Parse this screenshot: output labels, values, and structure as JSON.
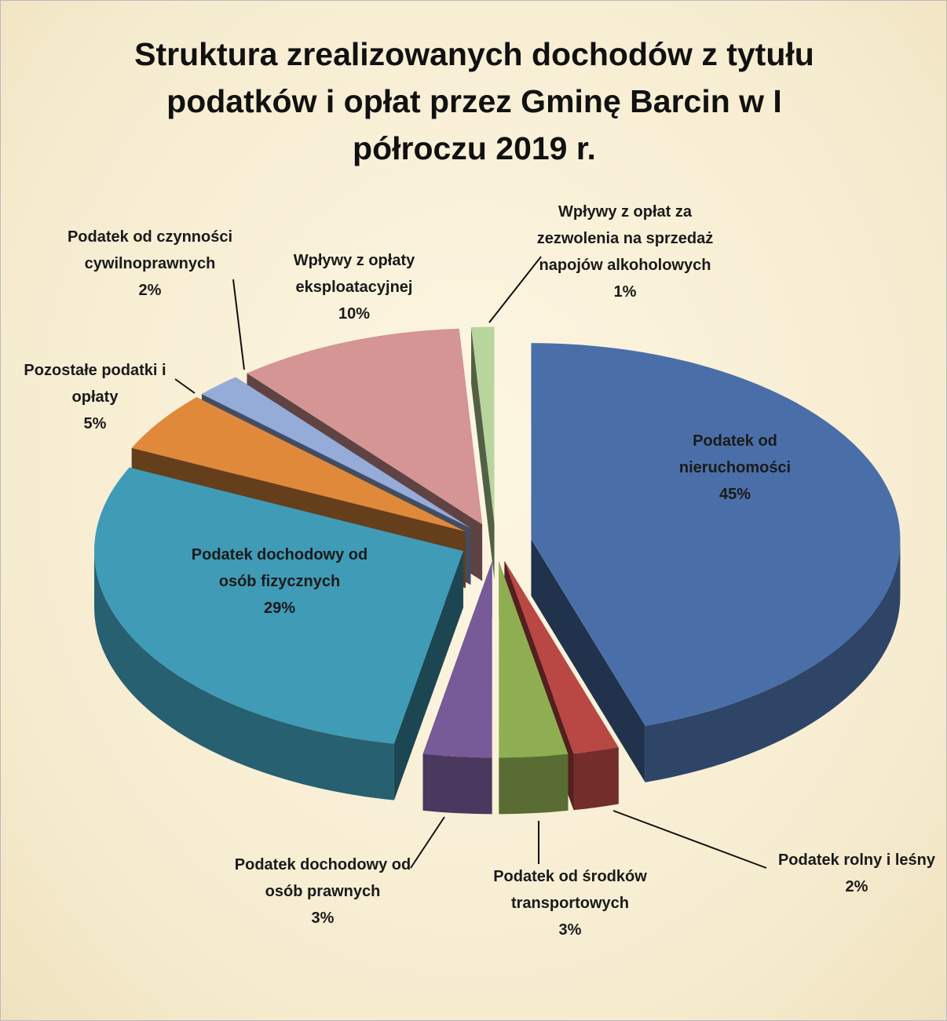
{
  "chart_data": {
    "type": "pie3d",
    "title": "Struktura zrealizowanych dochodów z tytułu podatków i opłat przez Gminę Barcin w I półroczu 2019 r.",
    "categories": [
      "Podatek od nieruchomości",
      "Podatek rolny i leśny",
      "Podatek od środków transportowych",
      "Podatek dochodowy od osób prawnych",
      "Podatek dochodowy od osób fizycznych",
      "Pozostałe podatki i opłaty",
      "Podatek od czynności cywilnoprawnych",
      "Wpływy z opłaty eksploatacyjnej",
      "Wpływy z opłat za zezwolenia na sprzedaż napojów alkoholowych"
    ],
    "values": [
      45,
      2,
      3,
      3,
      29,
      5,
      2,
      10,
      1
    ],
    "value_labels": [
      "45%",
      "2%",
      "3%",
      "3%",
      "29%",
      "5%",
      "2%",
      "10%",
      "1%"
    ],
    "colors": [
      "#4a6fa8",
      "#b94845",
      "#8fae52",
      "#775a98",
      "#3f9bb6",
      "#e0893b",
      "#95abd8",
      "#d49594",
      "#b7d59c"
    ]
  }
}
